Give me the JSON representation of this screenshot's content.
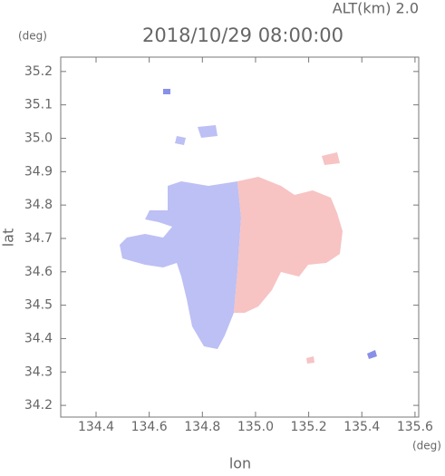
{
  "chart_data": {
    "type": "map",
    "title": "2018/10/29 08:00:00",
    "subtitle": "ALT(km) 2.0",
    "x_label": "lon",
    "x_unit": "(deg)",
    "y_label": "lat",
    "y_unit": "(deg)",
    "xlim": [
      134.267,
      135.614
    ],
    "ylim": [
      34.165,
      35.243
    ],
    "xticks": [
      134.4,
      134.6,
      134.8,
      {
        "value": 135,
        "label": "135.0"
      },
      135.2,
      135.4,
      135.6
    ],
    "yticks": [
      34.2,
      34.3,
      34.4,
      34.5,
      34.6,
      34.7,
      34.8,
      34.9,
      {
        "value": 35,
        "label": "35.0"
      },
      35.1,
      35.2
    ]
  }
}
